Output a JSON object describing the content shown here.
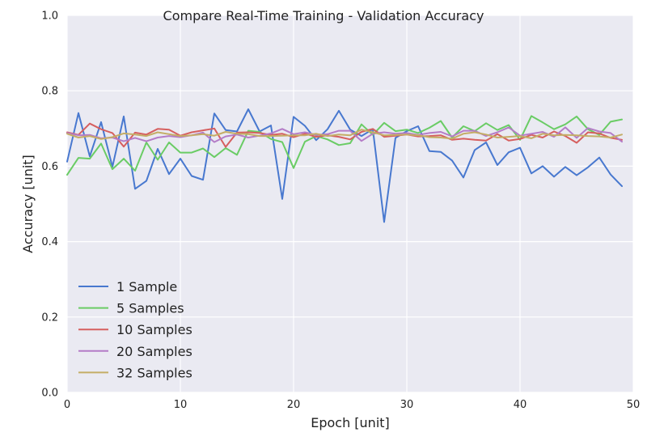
{
  "chart_data": {
    "type": "line",
    "title": "Compare Real-Time Training - Validation Accuracy",
    "xlabel": "Epoch [unit]",
    "ylabel": "Accuracy [unit]",
    "xlim": [
      0,
      50
    ],
    "ylim": [
      0.0,
      1.0
    ],
    "xticks": [
      "0",
      "10",
      "20",
      "30",
      "40",
      "50"
    ],
    "yticks": [
      "0.0",
      "0.2",
      "0.4",
      "0.6",
      "0.8",
      "1.0"
    ],
    "grid": true,
    "legend_position": "lower-left",
    "x": [
      0,
      1,
      2,
      3,
      4,
      5,
      6,
      7,
      8,
      9,
      10,
      11,
      12,
      13,
      14,
      15,
      16,
      17,
      18,
      19,
      20,
      21,
      22,
      23,
      24,
      25,
      26,
      27,
      28,
      29,
      30,
      31,
      32,
      33,
      34,
      35,
      36,
      37,
      38,
      39,
      40,
      41,
      42,
      43,
      44,
      45,
      46,
      47,
      48,
      49
    ],
    "series": [
      {
        "name": "1 Sample",
        "color": "#4878cf",
        "values": [
          0.612,
          0.741,
          0.626,
          0.717,
          0.598,
          0.732,
          0.54,
          0.561,
          0.646,
          0.579,
          0.62,
          0.574,
          0.564,
          0.74,
          0.696,
          0.692,
          0.751,
          0.692,
          0.708,
          0.513,
          0.731,
          0.707,
          0.669,
          0.698,
          0.747,
          0.697,
          0.68,
          0.698,
          0.452,
          0.675,
          0.693,
          0.706,
          0.64,
          0.638,
          0.615,
          0.57,
          0.643,
          0.663,
          0.603,
          0.637,
          0.649,
          0.581,
          0.6,
          0.572,
          0.598,
          0.576,
          0.597,
          0.623,
          0.578,
          0.547
        ]
      },
      {
        "name": "5 Samples",
        "color": "#6acc65",
        "values": [
          0.577,
          0.622,
          0.62,
          0.66,
          0.592,
          0.62,
          0.588,
          0.663,
          0.617,
          0.663,
          0.636,
          0.636,
          0.647,
          0.624,
          0.648,
          0.63,
          0.694,
          0.691,
          0.672,
          0.664,
          0.595,
          0.665,
          0.68,
          0.671,
          0.656,
          0.661,
          0.711,
          0.683,
          0.715,
          0.693,
          0.697,
          0.688,
          0.702,
          0.72,
          0.676,
          0.706,
          0.693,
          0.714,
          0.696,
          0.709,
          0.67,
          0.733,
          0.716,
          0.698,
          0.711,
          0.732,
          0.698,
          0.683,
          0.718,
          0.724
        ]
      },
      {
        "name": "10 Samples",
        "color": "#d65f5f",
        "values": [
          0.69,
          0.683,
          0.713,
          0.698,
          0.688,
          0.652,
          0.689,
          0.684,
          0.699,
          0.697,
          0.681,
          0.69,
          0.695,
          0.7,
          0.651,
          0.689,
          0.69,
          0.688,
          0.683,
          0.686,
          0.677,
          0.686,
          0.678,
          0.682,
          0.678,
          0.671,
          0.691,
          0.699,
          0.678,
          0.681,
          0.684,
          0.679,
          0.68,
          0.682,
          0.67,
          0.673,
          0.67,
          0.668,
          0.685,
          0.668,
          0.672,
          0.683,
          0.676,
          0.692,
          0.68,
          0.662,
          0.69,
          0.687,
          0.675,
          0.67
        ]
      },
      {
        "name": "20 Samples",
        "color": "#b47cc7",
        "values": [
          0.688,
          0.682,
          0.683,
          0.674,
          0.676,
          0.666,
          0.675,
          0.666,
          0.676,
          0.68,
          0.677,
          0.682,
          0.689,
          0.664,
          0.679,
          0.684,
          0.676,
          0.681,
          0.687,
          0.699,
          0.685,
          0.69,
          0.683,
          0.685,
          0.694,
          0.694,
          0.667,
          0.686,
          0.69,
          0.686,
          0.688,
          0.683,
          0.688,
          0.691,
          0.679,
          0.694,
          0.694,
          0.68,
          0.69,
          0.703,
          0.681,
          0.686,
          0.691,
          0.678,
          0.703,
          0.675,
          0.701,
          0.692,
          0.688,
          0.665
        ]
      },
      {
        "name": "32 Samples",
        "color": "#c4ad66",
        "values": [
          0.686,
          0.676,
          0.68,
          0.672,
          0.677,
          0.687,
          0.684,
          0.68,
          0.69,
          0.685,
          0.68,
          0.682,
          0.685,
          0.681,
          0.691,
          0.686,
          0.685,
          0.68,
          0.68,
          0.681,
          0.682,
          0.682,
          0.686,
          0.68,
          0.684,
          0.682,
          0.697,
          0.69,
          0.682,
          0.683,
          0.684,
          0.682,
          0.677,
          0.676,
          0.673,
          0.686,
          0.69,
          0.684,
          0.676,
          0.678,
          0.68,
          0.674,
          0.686,
          0.682,
          0.683,
          0.682,
          0.68,
          0.679,
          0.676,
          0.684
        ]
      }
    ]
  }
}
